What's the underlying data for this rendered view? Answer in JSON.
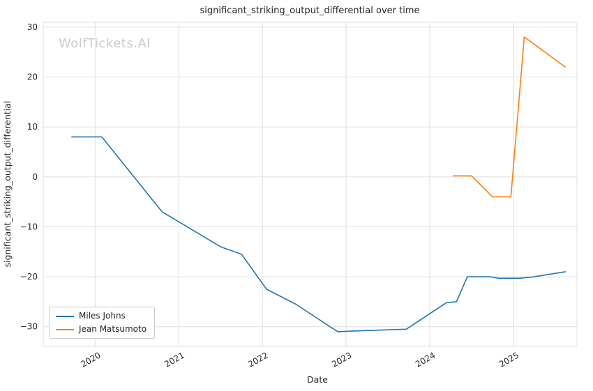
{
  "chart_data": {
    "type": "line",
    "title": "significant_striking_output_differential over time",
    "xlabel": "Date",
    "ylabel": "significant_striking_output_differential",
    "watermark": "WolfTickets.AI",
    "legend_position": "lower left",
    "grid": true,
    "x_ticks": [
      2020,
      2021,
      2022,
      2023,
      2024,
      2025
    ],
    "y_ticks": [
      -30,
      -20,
      -10,
      0,
      10,
      20,
      30
    ],
    "xlim": [
      2019.38,
      2025.76
    ],
    "ylim": [
      -33.95,
      30.95
    ],
    "colors": {
      "grid": "#e0e0e0",
      "text": "#262626",
      "watermark": "#cbcbcb",
      "background": "#ffffff"
    },
    "series": [
      {
        "name": "Miles Johns",
        "color": "#1f77b4",
        "x": [
          2019.72,
          2020.08,
          2020.8,
          2021.0,
          2021.5,
          2021.75,
          2022.05,
          2022.4,
          2022.9,
          2023.2,
          2023.72,
          2024.2,
          2024.32,
          2024.45,
          2024.72,
          2024.82,
          2025.08,
          2025.25,
          2025.62
        ],
        "y": [
          8,
          8,
          -7,
          -9,
          -14,
          -15.5,
          -22.5,
          -25.5,
          -31,
          -30.8,
          -30.5,
          -25.2,
          -25,
          -20,
          -20,
          -20.3,
          -20.3,
          -20,
          -19
        ]
      },
      {
        "name": "Jean Matsumoto",
        "color": "#ff7f0e",
        "x": [
          2024.28,
          2024.5,
          2024.75,
          2024.97,
          2025.13,
          2025.62
        ],
        "y": [
          0.2,
          0.2,
          -4,
          -4,
          28,
          22
        ]
      }
    ]
  }
}
